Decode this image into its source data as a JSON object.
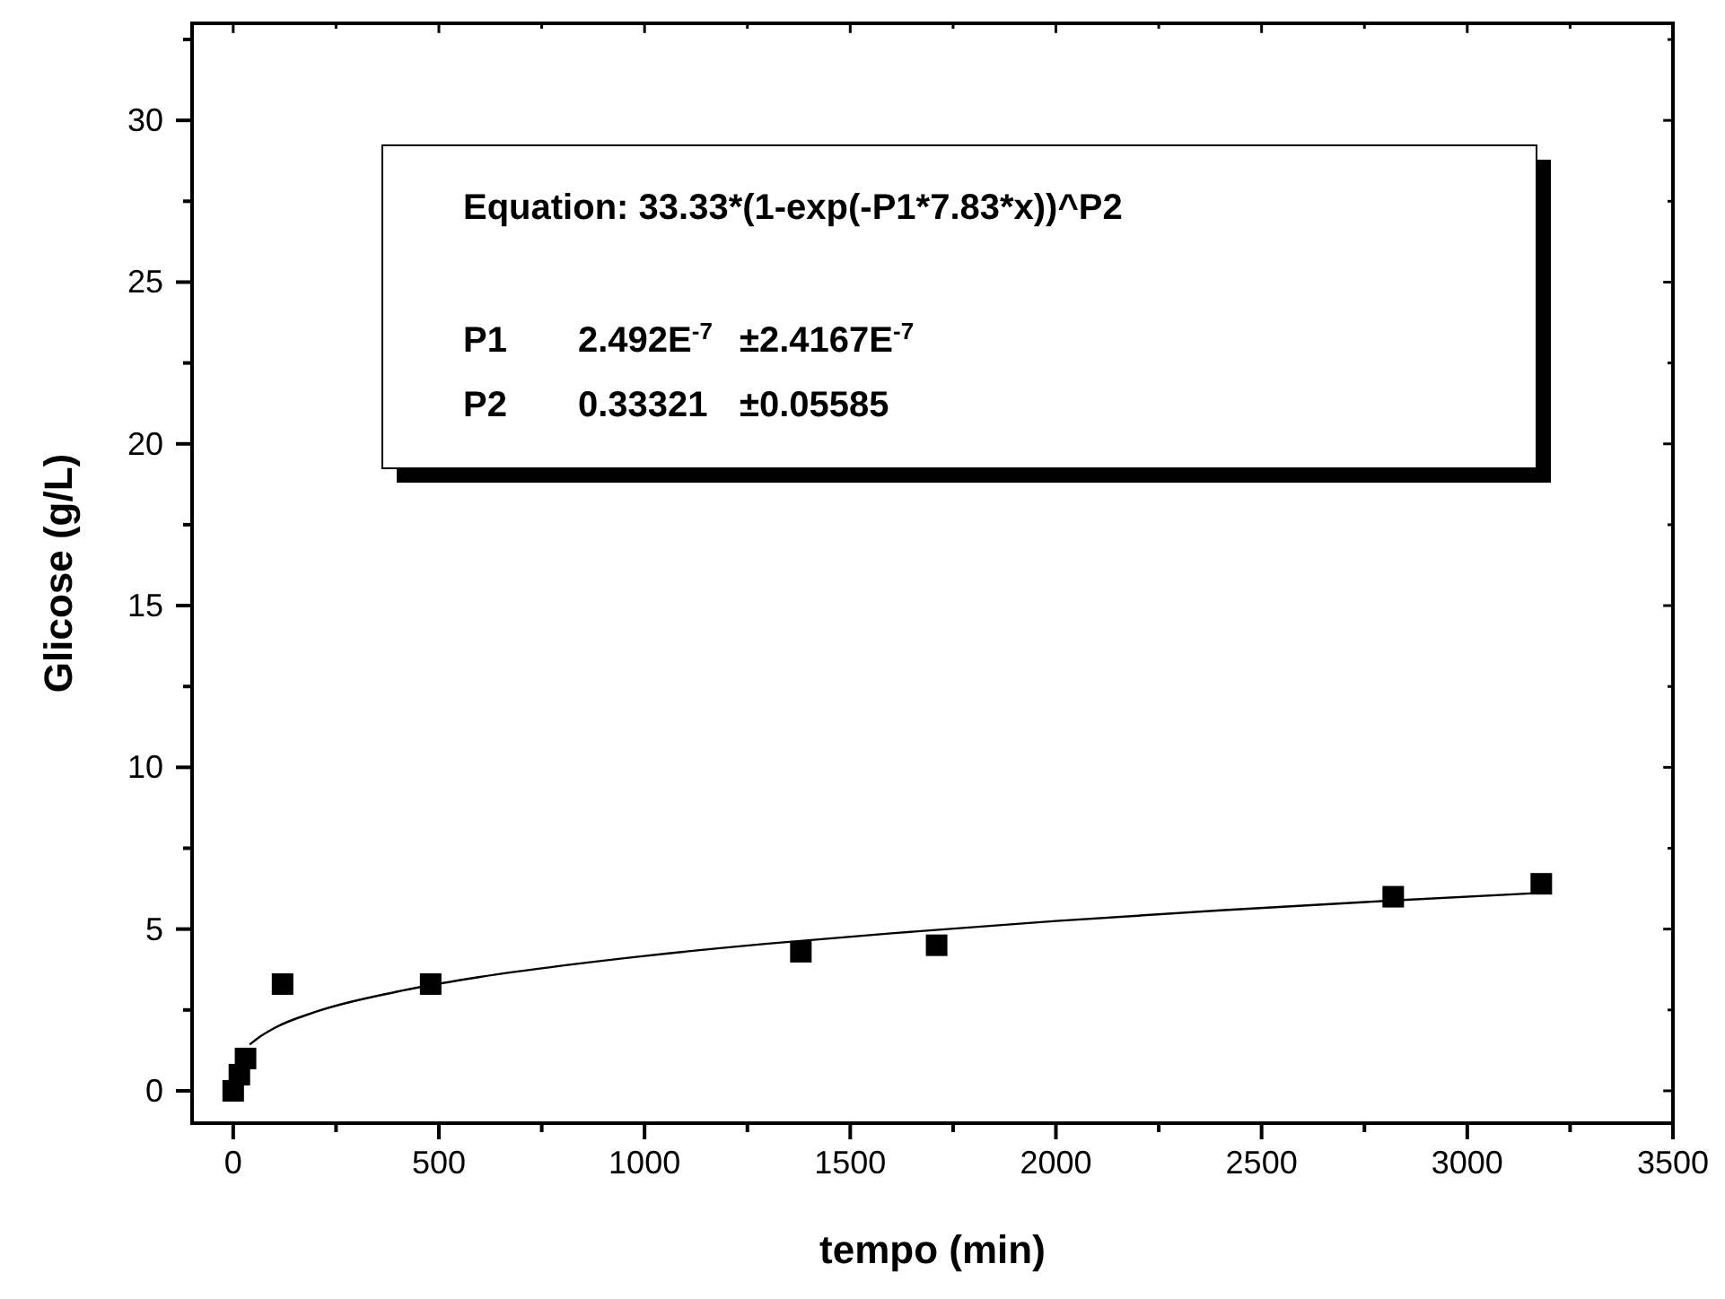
{
  "chart_data": {
    "type": "scatter",
    "xlabel": "tempo (min)",
    "ylabel": "Glicose (g/L)",
    "xlim": [
      -100,
      3500
    ],
    "ylim": [
      -1,
      33
    ],
    "xticks": [
      0,
      {
        "value": 250,
        "label": null
      },
      500,
      {
        "value": 750,
        "label": null
      },
      1000,
      {
        "value": 1250,
        "label": null
      },
      1500,
      {
        "value": 1750,
        "label": null
      },
      2000,
      {
        "value": 2250,
        "label": null
      },
      2500,
      {
        "value": 2750,
        "label": null
      },
      3000,
      {
        "value": 3250,
        "label": null
      },
      3500
    ],
    "yticks": [
      0,
      {
        "value": 2.5,
        "label": null
      },
      5,
      {
        "value": 7.5,
        "label": null
      },
      10,
      {
        "value": 12.5,
        "label": null
      },
      15,
      {
        "value": 17.5,
        "label": null
      },
      20,
      {
        "value": 22.5,
        "label": null
      },
      25,
      {
        "value": 27.5,
        "label": null
      },
      30,
      {
        "value": 32.5,
        "label": null
      }
    ],
    "marker": "square",
    "grid": false,
    "series": [
      {
        "color": "#000000",
        "x": [
          0,
          15,
          30,
          120,
          480,
          1380,
          1710,
          2820,
          3180
        ],
        "values": [
          0,
          0.5,
          1,
          3.3,
          3.3,
          4.3,
          4.5,
          6.0,
          6.4
        ]
      },
      {
        "type": "line",
        "color": "#000000",
        "marker": "none",
        "x": [
          40,
          60,
          100,
          200,
          400,
          600,
          800,
          1000,
          1300,
          1600,
          2000,
          2400,
          2800,
          3180
        ],
        "values": [
          1.43,
          1.63,
          1.94,
          2.44,
          3.07,
          3.52,
          3.87,
          4.17,
          4.55,
          4.87,
          5.25,
          5.58,
          5.87,
          6.12
        ]
      }
    ],
    "annotations": [
      "Equation: 33.33*(1-exp(-P1*7.83*x))^P2",
      "P1",
      "2.492E$^{-7}$",
      "±2.4167E$^{-7}$",
      "P2",
      "0.33321",
      "±0.05585"
    ]
  }
}
